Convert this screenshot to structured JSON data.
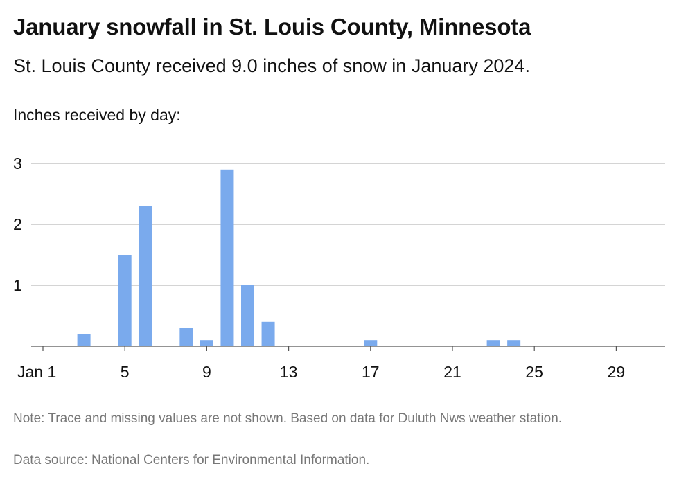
{
  "header": {
    "title": "January snowfall in St. Louis County, Minnesota",
    "subtitle": "St. Louis County received 9.0 inches of snow in January 2024.",
    "axis_caption": "Inches received by day:"
  },
  "footer": {
    "note": "Note: Trace and missing values are not shown. Based on data for Duluth Nws weather station.",
    "source": "Data source: National Centers for Environmental Information."
  },
  "chart_data": {
    "type": "bar",
    "title": "January snowfall in St. Louis County, Minnesota",
    "ylabel": "Inches received by day:",
    "xlabel": "",
    "days": [
      1,
      2,
      3,
      4,
      5,
      6,
      7,
      8,
      9,
      10,
      11,
      12,
      13,
      14,
      15,
      16,
      17,
      18,
      19,
      20,
      21,
      22,
      23,
      24,
      25,
      26,
      27,
      28,
      29,
      30,
      31
    ],
    "values": [
      0,
      0,
      0.2,
      0,
      1.5,
      2.3,
      0,
      0.3,
      0.1,
      2.9,
      1.0,
      0.4,
      0,
      0,
      0,
      0,
      0.1,
      0,
      0,
      0,
      0,
      0,
      0.1,
      0.1,
      0,
      0,
      0,
      0,
      0,
      0,
      0
    ],
    "x_ticks": [
      {
        "day": 1,
        "label": "Jan 1"
      },
      {
        "day": 5,
        "label": "5"
      },
      {
        "day": 9,
        "label": "9"
      },
      {
        "day": 13,
        "label": "13"
      },
      {
        "day": 17,
        "label": "17"
      },
      {
        "day": 21,
        "label": "21"
      },
      {
        "day": 25,
        "label": "25"
      },
      {
        "day": 29,
        "label": "29"
      }
    ],
    "y_ticks": [
      1,
      2,
      3
    ],
    "ylim": [
      0,
      3
    ],
    "grid": true,
    "bar_color": "#7aaaed",
    "grid_color": "#aaaaaa"
  }
}
